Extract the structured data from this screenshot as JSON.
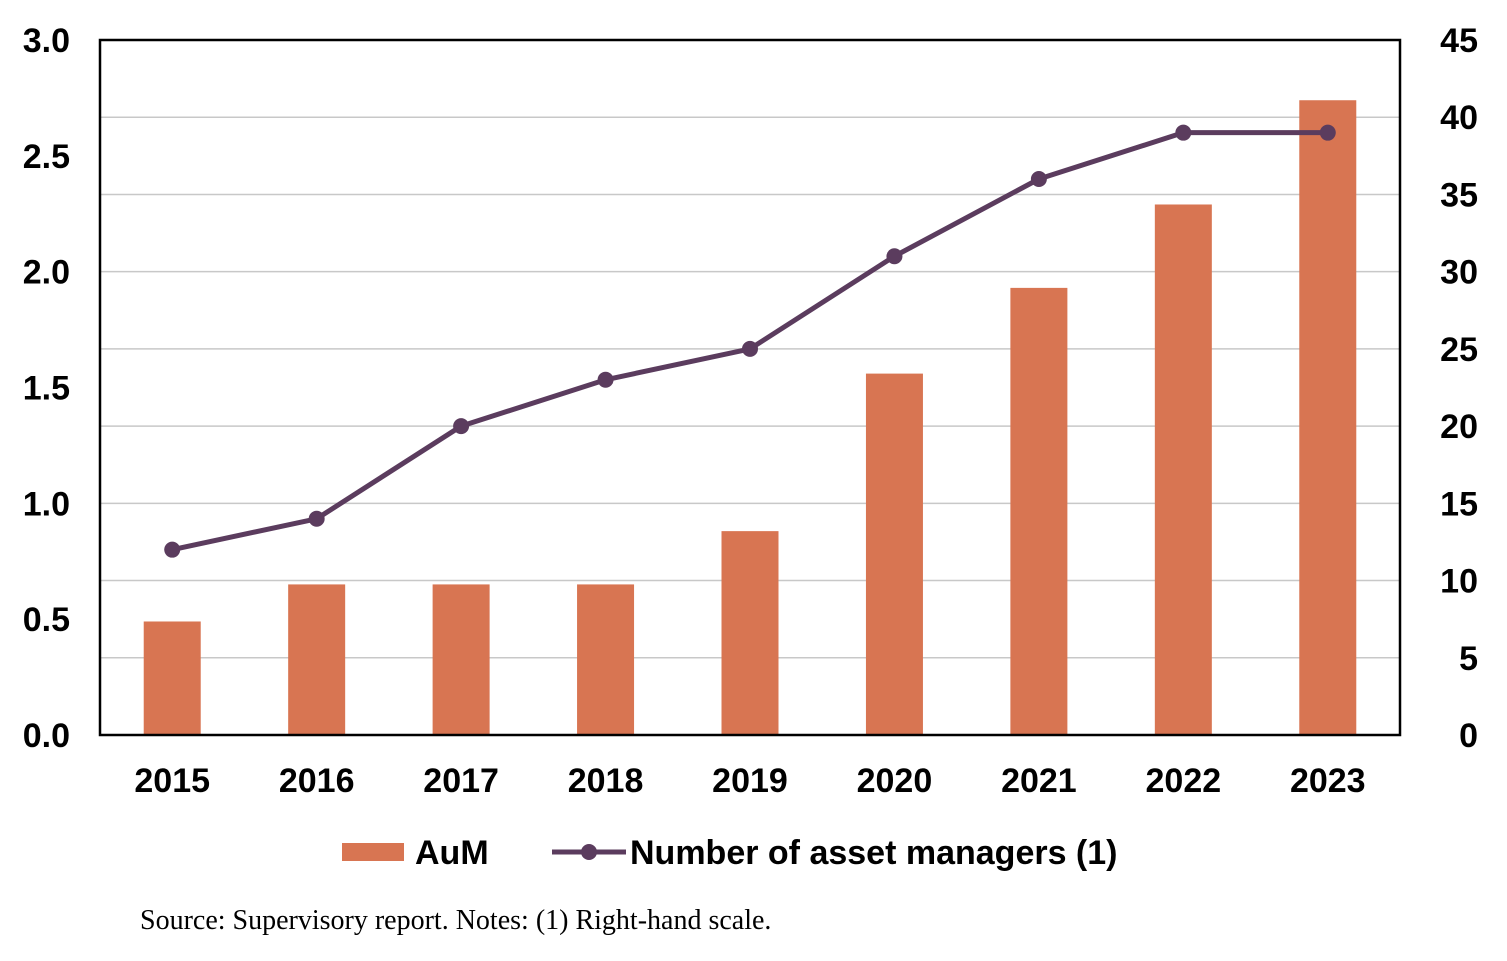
{
  "chart_data": {
    "type": "bar",
    "categories": [
      "2015",
      "2016",
      "2017",
      "2018",
      "2019",
      "2020",
      "2021",
      "2022",
      "2023"
    ],
    "series": [
      {
        "name": "AuM",
        "type": "bar",
        "axis": "left",
        "color": "#D87552",
        "values": [
          0.49,
          0.65,
          0.65,
          0.65,
          0.88,
          1.56,
          1.93,
          2.29,
          2.74
        ]
      },
      {
        "name": "Number of asset managers (1)",
        "type": "line",
        "axis": "right",
        "color": "#5B3C5E",
        "values": [
          12,
          14,
          20,
          23,
          25,
          31,
          36,
          39,
          39
        ]
      }
    ],
    "y_left": {
      "min": 0,
      "max": 3,
      "step": 0.5,
      "ticks": [
        "0.0",
        "0.5",
        "1.0",
        "1.5",
        "2.0",
        "2.5",
        "3.0"
      ]
    },
    "y_right": {
      "min": 0,
      "max": 45,
      "step": 5,
      "ticks": [
        "0",
        "5",
        "10",
        "15",
        "20",
        "25",
        "30",
        "35",
        "40",
        "45"
      ]
    },
    "grid": true,
    "legend": "bottom",
    "source_note": "Source: Supervisory report. Notes: (1) Right-hand scale."
  }
}
